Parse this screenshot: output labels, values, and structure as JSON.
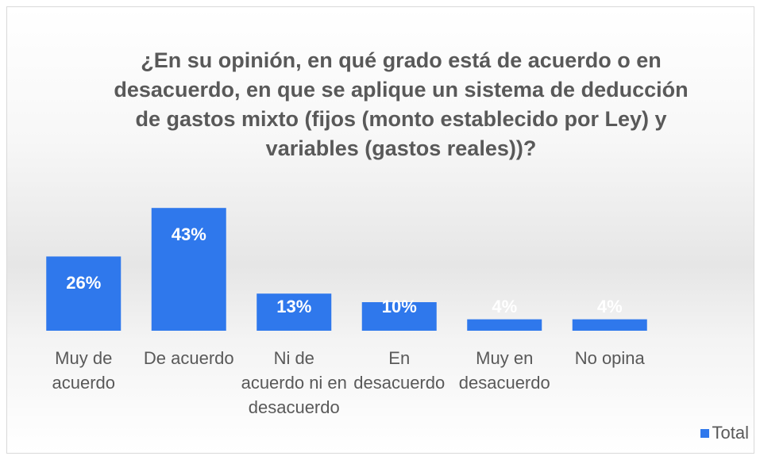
{
  "chart_data": {
    "type": "bar",
    "title": "¿En su opinión, en qué grado está de acuerdo o en desacuerdo, en que se aplique un sistema de deducción de gastos mixto (fijos (monto establecido por Ley) y variables (gastos reales))?",
    "categories": [
      "Muy de acuerdo",
      "De acuerdo",
      "Ni de acuerdo ni en desacuerdo",
      "En desacuerdo",
      "Muy en desacuerdo",
      "No opina"
    ],
    "series": [
      {
        "name": "Total",
        "color": "#2f78ec",
        "values": [
          26,
          43,
          13,
          10,
          4,
          4
        ],
        "value_labels": [
          "26%",
          "43%",
          "13%",
          "10%",
          "4%",
          "4%"
        ]
      }
    ],
    "legend": "bottom-right"
  }
}
